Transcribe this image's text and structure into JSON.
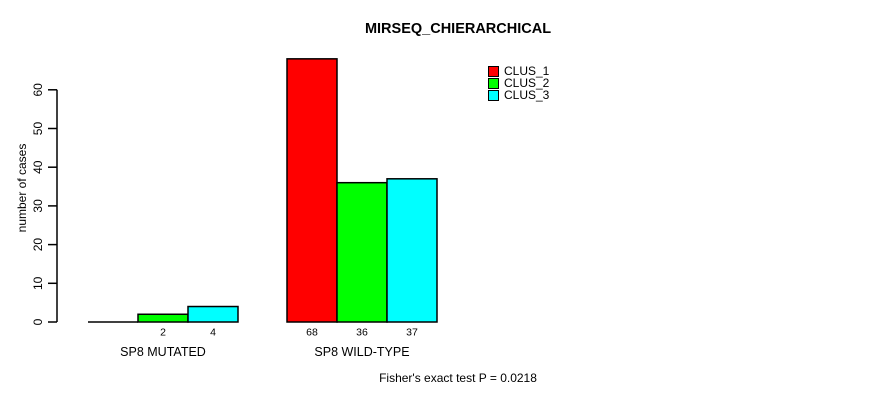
{
  "chart_data": {
    "type": "bar",
    "title": "MIRSEQ_CHIERARCHICAL",
    "ylabel": "number of cases",
    "xlabel": "",
    "categories": [
      "SP8 MUTATED",
      "SP8 WILD-TYPE"
    ],
    "series": [
      {
        "name": "CLUS_1",
        "color": "#ff0000",
        "values": [
          0,
          68
        ]
      },
      {
        "name": "CLUS_2",
        "color": "#00ff00",
        "values": [
          2,
          36
        ]
      },
      {
        "name": "CLUS_3",
        "color": "#00ffff",
        "values": [
          4,
          37
        ]
      }
    ],
    "bar_value_labels": [
      [
        "",
        "2",
        "4"
      ],
      [
        "68",
        "36",
        "37"
      ]
    ],
    "yticks": [
      0,
      10,
      20,
      30,
      40,
      50,
      60
    ],
    "ylim": [
      0,
      68
    ],
    "axis_max_tick": 60,
    "grid": "off",
    "legend_position": "top-right",
    "annotation": "Fisher's exact test P = 0.0218"
  }
}
